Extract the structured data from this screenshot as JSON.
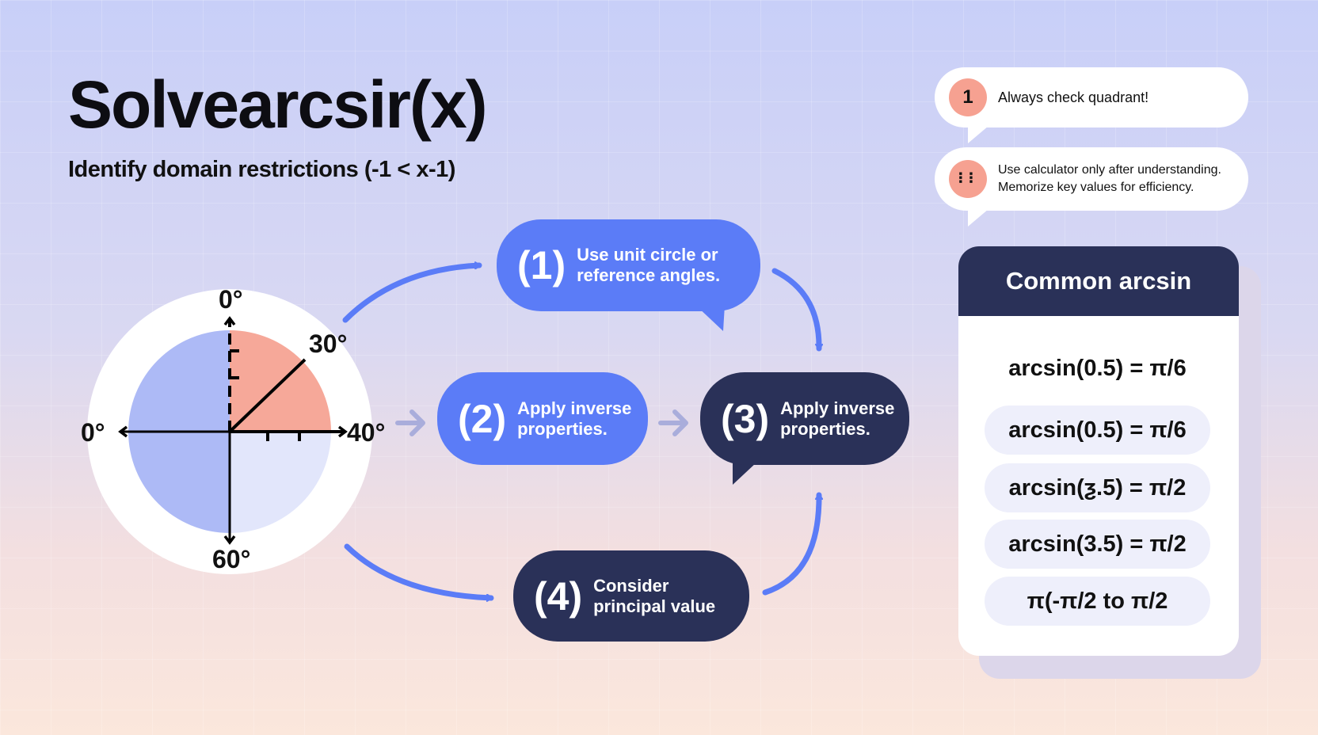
{
  "header": {
    "title": "Solvearcsir(x)",
    "subtitle": "Identify domain restrictions (-1 < x-1)"
  },
  "tips": [
    {
      "badge": "1",
      "text": "Always check quadrant!"
    },
    {
      "badge": "⠇⠇",
      "text_line1": "Use calculator only after understanding.",
      "text_line2": "Memorize key values for efficiency."
    }
  ],
  "card": {
    "title": "Common arcsin",
    "rows": [
      "arcsin(0.5) = π/6",
      "arcsin(0.5) = π/6",
      "arcsin(ƺ.5) = π/2",
      "arcsin(3.5) = π/2",
      "π(-π/2  to π/2"
    ]
  },
  "steps": [
    {
      "num": "(1)",
      "line1": "Use unit circle or",
      "line2": "reference angles."
    },
    {
      "num": "(2)",
      "line1": "Apply inverse",
      "line2": "properties."
    },
    {
      "num": "(3)",
      "line1": "Apply inverse",
      "line2": "properties."
    },
    {
      "num": "(4)",
      "line1": "Consider",
      "line2": "principal value"
    }
  ],
  "circle": {
    "labels": {
      "top": "0°",
      "diag": "30°",
      "right": "40°",
      "left": "0°",
      "bottom": "60°"
    }
  },
  "colors": {
    "blue": "#5b7cf7",
    "navy": "#2a3158",
    "salmon": "#f6a191",
    "circle_blue": "#adbaf6",
    "circle_light": "#e2e6fb"
  }
}
